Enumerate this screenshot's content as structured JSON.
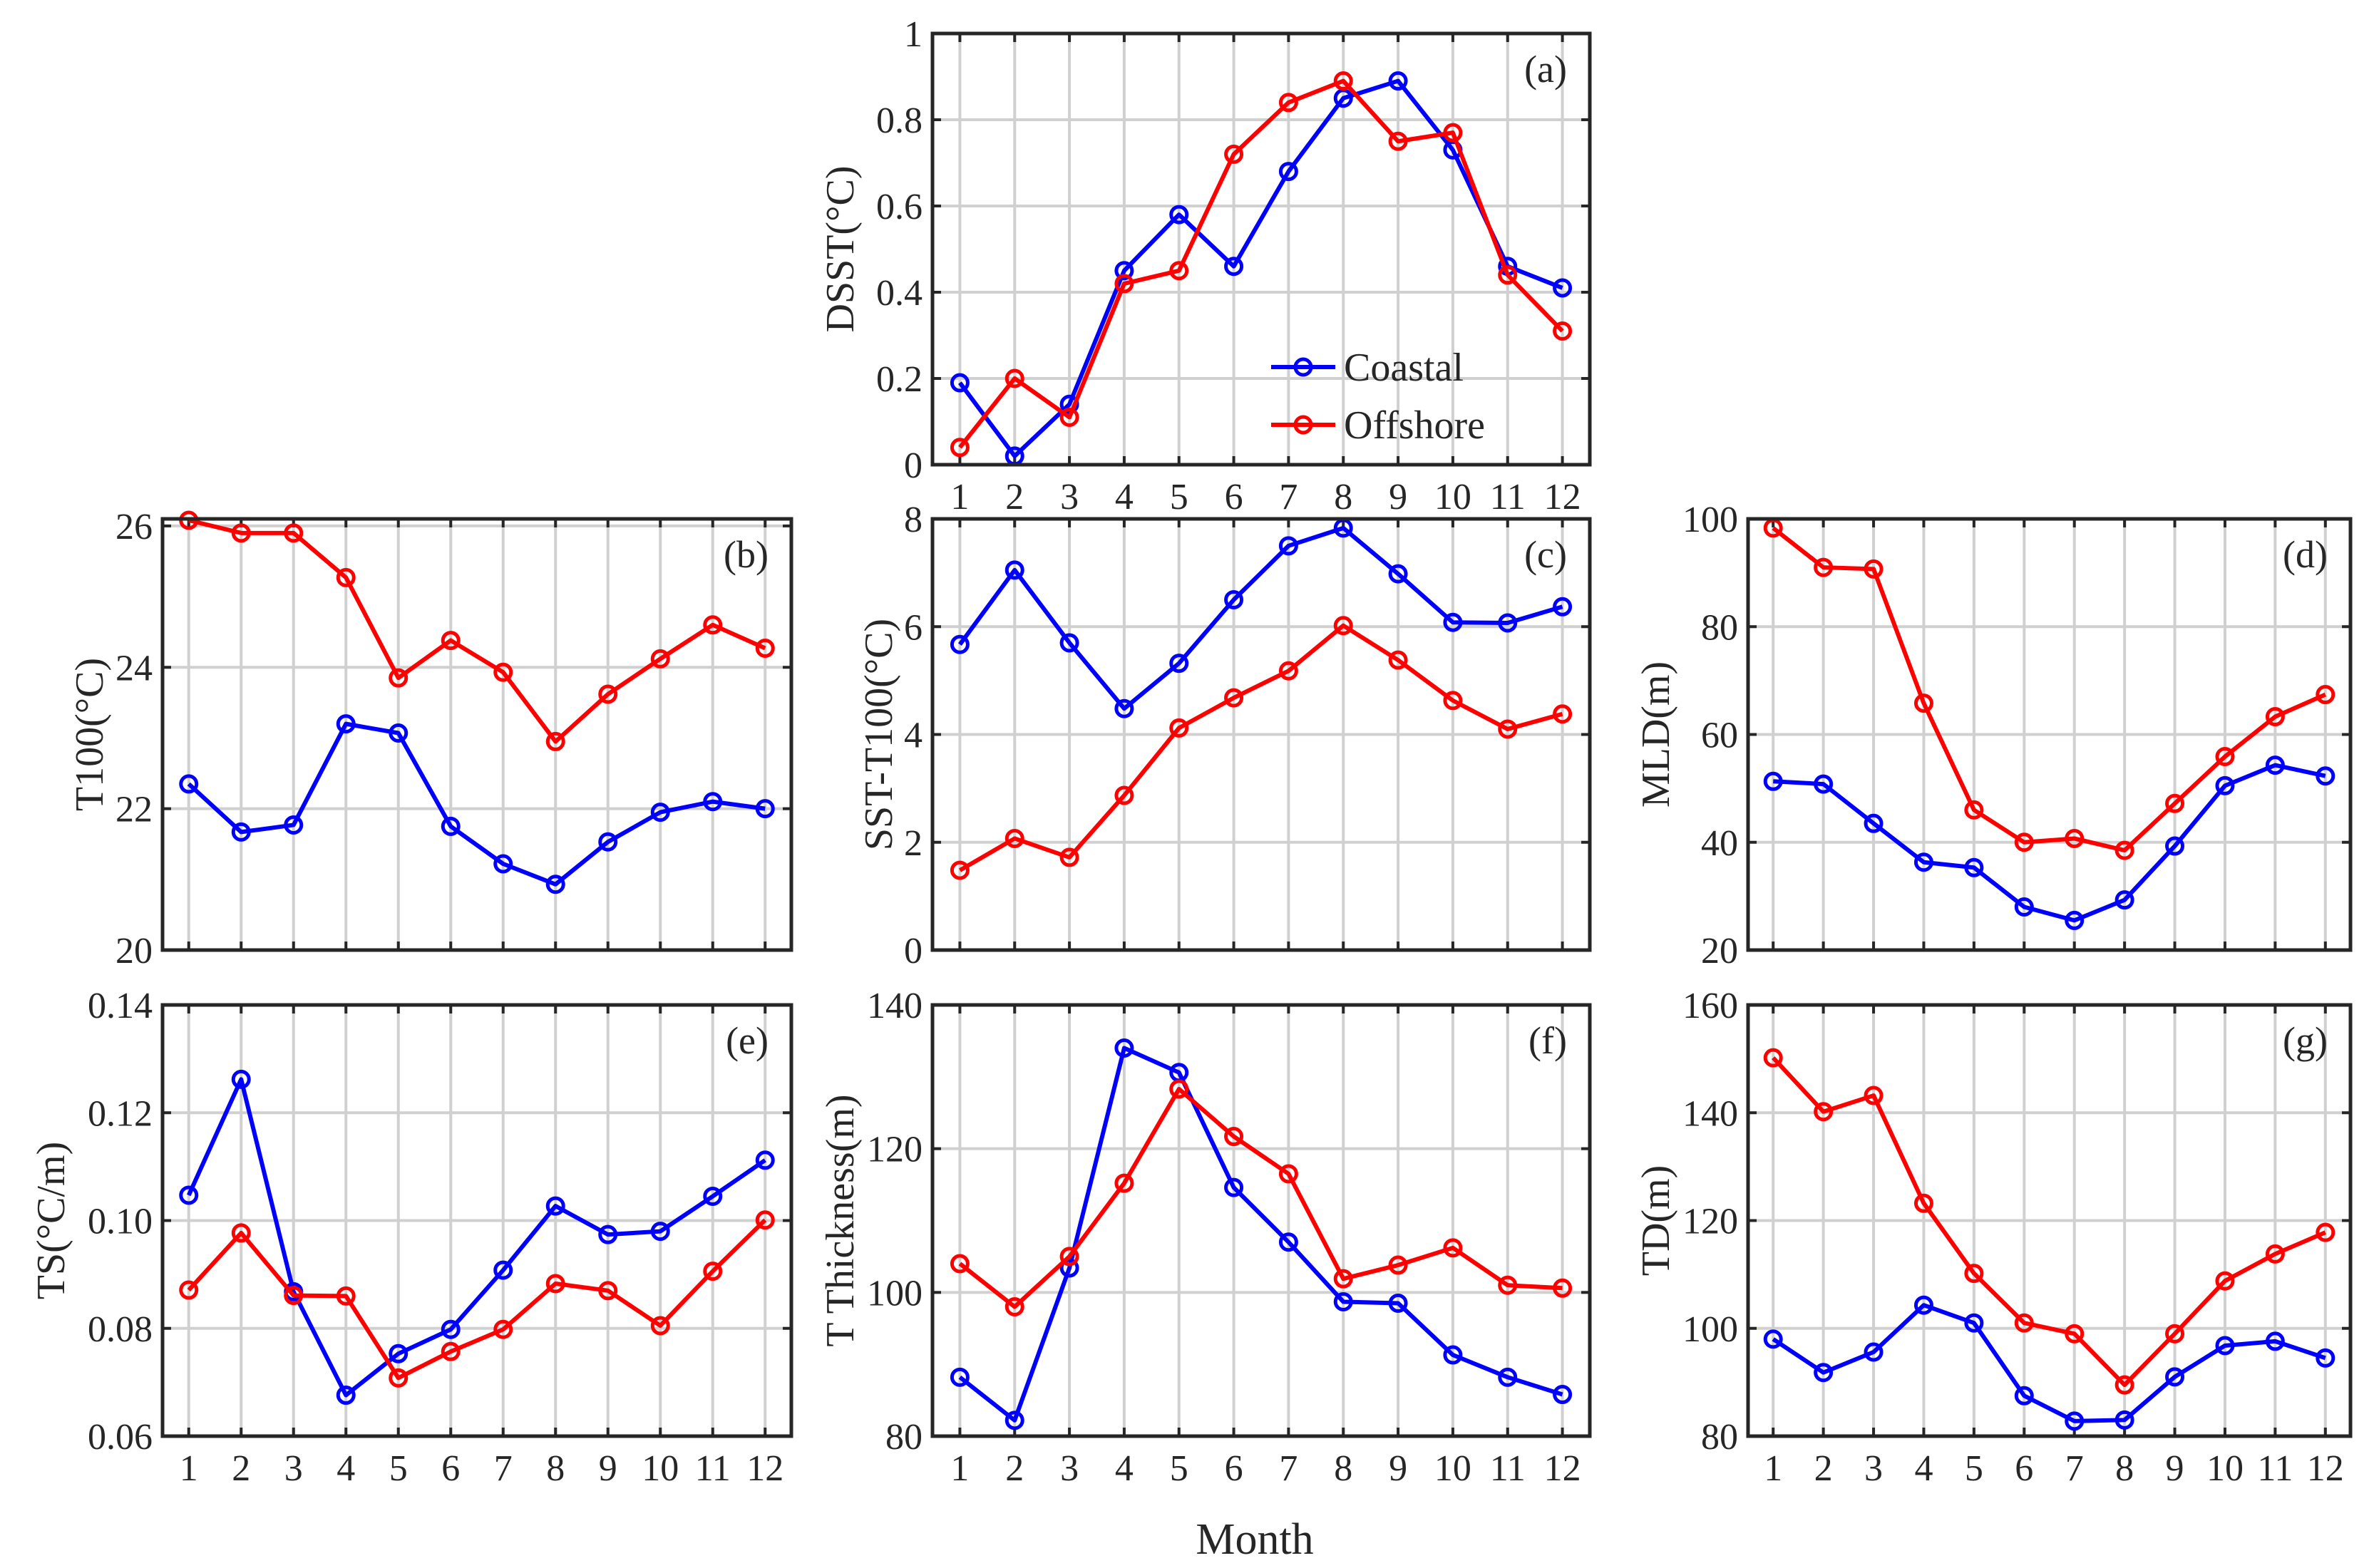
{
  "figure_xlabel": "Month",
  "chart_data": [
    {
      "id": "a",
      "type": "line",
      "panel_label": "(a)",
      "ylabel": "DSST(°C)",
      "xlabel": "",
      "x": [
        1,
        2,
        3,
        4,
        5,
        6,
        7,
        8,
        9,
        10,
        11,
        12
      ],
      "xlim": [
        0.5,
        12.5
      ],
      "ylim": [
        0,
        1
      ],
      "yticks": [
        0,
        0.2,
        0.4,
        0.6,
        0.8,
        1
      ],
      "ytick_labels": [
        "0",
        "0.2",
        "0.4",
        "0.6",
        "0.8",
        "1"
      ],
      "xtick_labels": [
        "1",
        "2",
        "3",
        "4",
        "5",
        "6",
        "7",
        "8",
        "9",
        "10",
        "11",
        "12"
      ],
      "show_xtick_labels": true,
      "grid": true,
      "legend": {
        "entries": [
          "Coastal",
          "Offshore"
        ],
        "position": "bottom-right"
      },
      "series": [
        {
          "name": "Coastal",
          "color": "#0000ff",
          "values": [
            0.19,
            0.02,
            0.14,
            0.45,
            0.58,
            0.46,
            0.68,
            0.85,
            0.89,
            0.73,
            0.46,
            0.41
          ]
        },
        {
          "name": "Offshore",
          "color": "#ff0000",
          "values": [
            0.04,
            0.2,
            0.11,
            0.42,
            0.45,
            0.72,
            0.84,
            0.89,
            0.75,
            0.77,
            0.44,
            0.31
          ]
        }
      ]
    },
    {
      "id": "b",
      "type": "line",
      "panel_label": "(b)",
      "ylabel": "T100(°C)",
      "xlabel": "",
      "x": [
        1,
        2,
        3,
        4,
        5,
        6,
        7,
        8,
        9,
        10,
        11,
        12
      ],
      "xlim": [
        0.5,
        12.5
      ],
      "ylim": [
        20,
        26.1
      ],
      "yticks": [
        20,
        22,
        24,
        26
      ],
      "ytick_labels": [
        "20",
        "22",
        "24",
        "26"
      ],
      "xtick_labels": [
        "1",
        "2",
        "3",
        "4",
        "5",
        "6",
        "7",
        "8",
        "9",
        "10",
        "11",
        "12"
      ],
      "show_xtick_labels": false,
      "grid": true,
      "series": [
        {
          "name": "Coastal",
          "color": "#0000ff",
          "values": [
            22.35,
            21.67,
            21.77,
            23.2,
            23.07,
            21.75,
            21.22,
            20.93,
            21.53,
            21.95,
            22.1,
            22.0
          ]
        },
        {
          "name": "Offshore",
          "color": "#ff0000",
          "values": [
            26.08,
            25.9,
            25.9,
            25.27,
            23.85,
            24.38,
            23.93,
            22.95,
            23.62,
            24.12,
            24.6,
            24.27
          ]
        }
      ]
    },
    {
      "id": "c",
      "type": "line",
      "panel_label": "(c)",
      "ylabel": "SST-T100(°C)",
      "xlabel": "",
      "x": [
        1,
        2,
        3,
        4,
        5,
        6,
        7,
        8,
        9,
        10,
        11,
        12
      ],
      "xlim": [
        0.5,
        12.5
      ],
      "ylim": [
        0,
        8
      ],
      "yticks": [
        0,
        2,
        4,
        6,
        8
      ],
      "ytick_labels": [
        "0",
        "2",
        "4",
        "6",
        "8"
      ],
      "xtick_labels": [
        "1",
        "2",
        "3",
        "4",
        "5",
        "6",
        "7",
        "8",
        "9",
        "10",
        "11",
        "12"
      ],
      "show_xtick_labels": false,
      "grid": true,
      "series": [
        {
          "name": "Coastal",
          "color": "#0000ff",
          "values": [
            5.67,
            7.05,
            5.7,
            4.48,
            5.32,
            6.5,
            7.5,
            7.83,
            6.98,
            6.08,
            6.07,
            6.37
          ]
        },
        {
          "name": "Offshore",
          "color": "#ff0000",
          "values": [
            1.48,
            2.07,
            1.72,
            2.87,
            4.12,
            4.68,
            5.18,
            6.02,
            5.38,
            4.63,
            4.1,
            4.38
          ]
        }
      ]
    },
    {
      "id": "d",
      "type": "line",
      "panel_label": "(d)",
      "ylabel": "MLD(m)",
      "xlabel": "",
      "x": [
        1,
        2,
        3,
        4,
        5,
        6,
        7,
        8,
        9,
        10,
        11,
        12
      ],
      "xlim": [
        0.5,
        12.5
      ],
      "ylim": [
        20,
        100
      ],
      "yticks": [
        20,
        40,
        60,
        80,
        100
      ],
      "ytick_labels": [
        "20",
        "40",
        "60",
        "80",
        "100"
      ],
      "xtick_labels": [
        "1",
        "2",
        "3",
        "4",
        "5",
        "6",
        "7",
        "8",
        "9",
        "10",
        "11",
        "12"
      ],
      "show_xtick_labels": false,
      "grid": true,
      "series": [
        {
          "name": "Coastal",
          "color": "#0000ff",
          "values": [
            51.3,
            50.8,
            43.5,
            36.3,
            35.3,
            28.0,
            25.5,
            29.3,
            39.3,
            50.5,
            54.3,
            52.3
          ]
        },
        {
          "name": "Offshore",
          "color": "#ff0000",
          "values": [
            98.3,
            91.0,
            90.7,
            65.8,
            46.0,
            40.0,
            40.7,
            38.5,
            47.2,
            55.9,
            63.3,
            67.4
          ]
        }
      ]
    },
    {
      "id": "e",
      "type": "line",
      "panel_label": "(e)",
      "ylabel": "TS(°C/m)",
      "xlabel": "",
      "x": [
        1,
        2,
        3,
        4,
        5,
        6,
        7,
        8,
        9,
        10,
        11,
        12
      ],
      "xlim": [
        0.5,
        12.5
      ],
      "ylim": [
        0.06,
        0.14
      ],
      "yticks": [
        0.06,
        0.08,
        0.1,
        0.12,
        0.14
      ],
      "ytick_labels": [
        "0.06",
        "0.08",
        "0.10",
        "0.12",
        "0.14"
      ],
      "xtick_labels": [
        "1",
        "2",
        "3",
        "4",
        "5",
        "6",
        "7",
        "8",
        "9",
        "10",
        "11",
        "12"
      ],
      "show_xtick_labels": true,
      "grid": true,
      "series": [
        {
          "name": "Coastal",
          "color": "#0000ff",
          "values": [
            0.1047,
            0.1262,
            0.0868,
            0.0676,
            0.0753,
            0.0798,
            0.0908,
            0.1027,
            0.0974,
            0.098,
            0.1045,
            0.1112
          ]
        },
        {
          "name": "Offshore",
          "color": "#ff0000",
          "values": [
            0.0871,
            0.0977,
            0.0861,
            0.086,
            0.0708,
            0.0757,
            0.0798,
            0.0883,
            0.087,
            0.0805,
            0.0906,
            0.1001
          ]
        }
      ]
    },
    {
      "id": "f",
      "type": "line",
      "panel_label": "(f)",
      "ylabel": "T Thickness(m)",
      "xlabel": "",
      "x": [
        1,
        2,
        3,
        4,
        5,
        6,
        7,
        8,
        9,
        10,
        11,
        12
      ],
      "xlim": [
        0.5,
        12.5
      ],
      "ylim": [
        80,
        140
      ],
      "yticks": [
        80,
        100,
        120,
        140
      ],
      "ytick_labels": [
        "80",
        "100",
        "120",
        "140"
      ],
      "xtick_labels": [
        "1",
        "2",
        "3",
        "4",
        "5",
        "6",
        "7",
        "8",
        "9",
        "10",
        "11",
        "12"
      ],
      "show_xtick_labels": true,
      "grid": true,
      "series": [
        {
          "name": "Coastal",
          "color": "#0000ff",
          "values": [
            88.2,
            82.2,
            103.4,
            134.0,
            130.6,
            114.6,
            107.0,
            98.7,
            98.5,
            91.3,
            88.2,
            85.8
          ]
        },
        {
          "name": "Offshore",
          "color": "#ff0000",
          "values": [
            104.0,
            98.0,
            105.0,
            115.2,
            128.3,
            121.7,
            116.5,
            101.9,
            103.8,
            106.2,
            101.0,
            100.6
          ]
        }
      ]
    },
    {
      "id": "g",
      "type": "line",
      "panel_label": "(g)",
      "ylabel": "TD(m)",
      "xlabel": "",
      "x": [
        1,
        2,
        3,
        4,
        5,
        6,
        7,
        8,
        9,
        10,
        11,
        12
      ],
      "xlim": [
        0.5,
        12.5
      ],
      "ylim": [
        80,
        160
      ],
      "yticks": [
        80,
        100,
        120,
        140,
        160
      ],
      "ytick_labels": [
        "80",
        "100",
        "120",
        "140",
        "160"
      ],
      "xtick_labels": [
        "1",
        "2",
        "3",
        "4",
        "5",
        "6",
        "7",
        "8",
        "9",
        "10",
        "11",
        "12"
      ],
      "show_xtick_labels": true,
      "grid": true,
      "series": [
        {
          "name": "Coastal",
          "color": "#0000ff",
          "values": [
            98.0,
            91.8,
            95.6,
            104.3,
            101.0,
            87.5,
            82.8,
            83.0,
            91.0,
            96.8,
            97.6,
            94.5
          ]
        },
        {
          "name": "Offshore",
          "color": "#ff0000",
          "values": [
            150.2,
            140.2,
            143.2,
            123.2,
            110.2,
            101.0,
            99.0,
            89.5,
            99.0,
            108.8,
            113.8,
            117.8
          ]
        }
      ]
    }
  ]
}
